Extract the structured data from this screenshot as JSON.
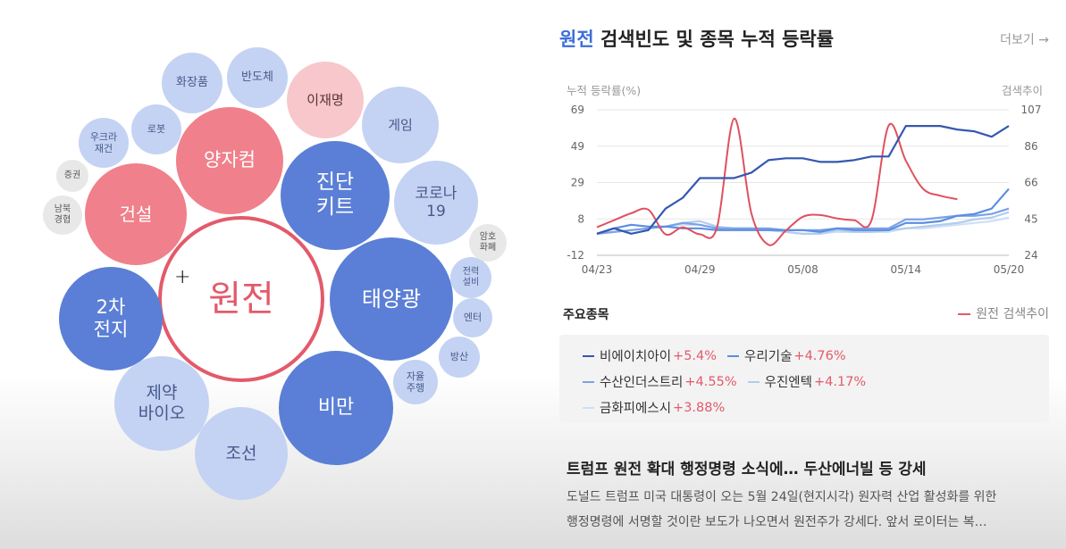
{
  "bubbles": [
    {
      "id": "main",
      "label": "원전",
      "style": "main"
    },
    {
      "id": "solar",
      "label": "태양광",
      "style": "dark"
    },
    {
      "id": "diag",
      "label": "진단\n키트",
      "style": "dark"
    },
    {
      "id": "battery",
      "label": "2차\n전지",
      "style": "dark"
    },
    {
      "id": "obesity",
      "label": "비만",
      "style": "dark"
    },
    {
      "id": "quantum",
      "label": "양자컴",
      "style": "pink"
    },
    {
      "id": "construct",
      "label": "건설",
      "style": "pink"
    },
    {
      "id": "leejm",
      "label": "이재명",
      "style": "lpink"
    },
    {
      "id": "pharma",
      "label": "제약\n바이오",
      "style": "light"
    },
    {
      "id": "ship",
      "label": "조선",
      "style": "light"
    },
    {
      "id": "covid",
      "label": "코로나\n19",
      "style": "light"
    },
    {
      "id": "game",
      "label": "게임",
      "style": "light"
    },
    {
      "id": "semi",
      "label": "반도체",
      "style": "light"
    },
    {
      "id": "cosmetic",
      "label": "화장품",
      "style": "light"
    },
    {
      "id": "robot",
      "label": "로봇",
      "style": "light"
    },
    {
      "id": "ukraine",
      "label": "우크라\n재건",
      "style": "light"
    },
    {
      "id": "auto",
      "label": "자율\n주행",
      "style": "light"
    },
    {
      "id": "defense",
      "label": "방산",
      "style": "light"
    },
    {
      "id": "entertain",
      "label": "엔터",
      "style": "light"
    },
    {
      "id": "power",
      "label": "전력\n설비",
      "style": "light"
    },
    {
      "id": "stock",
      "label": "증권",
      "style": "grey"
    },
    {
      "id": "nk",
      "label": "남북\n경협",
      "style": "grey"
    },
    {
      "id": "crypto",
      "label": "암호\n화폐",
      "style": "grey"
    }
  ],
  "header": {
    "keyword": "원전",
    "title_rest": " 검색빈도 및 종목 누적 등락률",
    "more": "더보기 →"
  },
  "chart_data": {
    "type": "line",
    "ylabel_left": "누적 등락률(%)",
    "ylabel_right": "검색추이",
    "y_left_ticks": [
      69,
      49,
      29,
      8,
      -12
    ],
    "y_left_range": [
      -12,
      69
    ],
    "y_right_ticks": [
      107,
      86,
      66,
      45,
      24
    ],
    "y_right_range": [
      24,
      107
    ],
    "x_ticks": [
      "04/23",
      "04/29",
      "05/08",
      "05/14",
      "05/20"
    ],
    "x_tick_index": [
      0,
      6,
      12,
      18,
      24
    ],
    "grid": true,
    "series": [
      {
        "name": "비에이치아이",
        "color": "#3558b0",
        "axis": "left",
        "values": [
          0,
          3,
          0,
          2,
          14,
          20,
          31,
          31,
          31,
          34,
          41,
          42,
          42,
          40,
          40,
          41,
          43,
          43,
          60,
          60,
          60,
          58,
          57,
          54,
          60
        ]
      },
      {
        "name": "우리기술",
        "color": "#5b8fe0",
        "axis": "left",
        "values": [
          0,
          3,
          5,
          4,
          4,
          3,
          3,
          2,
          2,
          2,
          2,
          2,
          2,
          1,
          3,
          2,
          2,
          2,
          6,
          6,
          7,
          10,
          11,
          14,
          25
        ]
      },
      {
        "name": "수산인더스트리",
        "color": "#7aa2e6",
        "axis": "left",
        "values": [
          0,
          1,
          2,
          3,
          4,
          6,
          5,
          3,
          3,
          3,
          3,
          2,
          2,
          2,
          3,
          3,
          3,
          3,
          8,
          8,
          9,
          10,
          10,
          11,
          14
        ]
      },
      {
        "name": "우진엔텍",
        "color": "#b2ccee",
        "axis": "left",
        "values": [
          0,
          1,
          2,
          3,
          4,
          6,
          7,
          4,
          3,
          3,
          2,
          1,
          0,
          0,
          2,
          1,
          1,
          2,
          3,
          4,
          5,
          6,
          8,
          9,
          12
        ]
      },
      {
        "name": "금화피에스시",
        "color": "#cfe0f5",
        "axis": "left",
        "values": [
          0,
          1,
          2,
          3,
          4,
          5,
          5,
          3,
          3,
          3,
          2,
          1,
          0,
          0,
          1,
          1,
          1,
          1,
          3,
          3,
          4,
          5,
          6,
          7,
          9
        ]
      },
      {
        "name": "원전 검색추이",
        "color": "#e0505f",
        "axis": "right",
        "values": [
          40,
          44,
          48,
          50,
          36,
          40,
          36,
          40,
          102,
          48,
          30,
          38,
          46,
          47,
          45,
          44,
          44,
          98,
          78,
          62,
          58,
          56
        ]
      }
    ]
  },
  "stocks_label": "주요종목",
  "search_legend": "원전 검색추이",
  "stocks": [
    [
      {
        "name": "비에이치아이",
        "change": "+5.4%",
        "color": "#3558b0"
      },
      {
        "name": "우리기술",
        "change": "+4.76%",
        "color": "#5b8fe0"
      }
    ],
    [
      {
        "name": "수산인더스트리",
        "change": "+4.55%",
        "color": "#7aa2e6"
      },
      {
        "name": "우진엔텍",
        "change": "+4.17%",
        "color": "#b2ccee"
      }
    ],
    [
      {
        "name": "금화피에스시",
        "change": "+3.88%",
        "color": "#cfe0f5"
      }
    ]
  ],
  "news": {
    "title": "트럼프 원전 확대 행정명령 소식에… 두산에너빌 등 강세",
    "body_line1": "도널드 트럼프 미국 대통령이 오는 5월 24일(현지시각) 원자력 산업 활성화를 위한",
    "body_line2": "행정명령에 서명할 것이란 보도가 나오면서 원전주가 강세다. 앞서 로이터는 복…"
  }
}
